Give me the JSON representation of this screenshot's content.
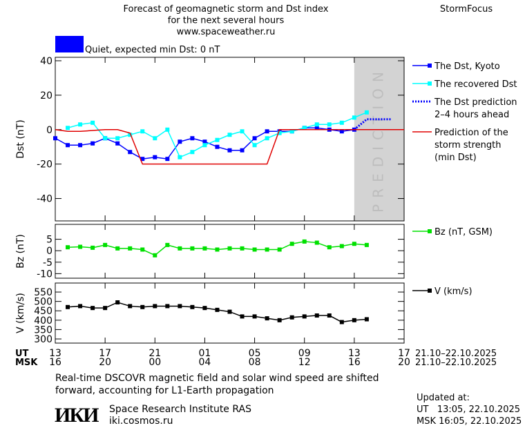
{
  "header": {
    "title_lines": [
      "Forecast of geomagnetic storm and Dst index",
      "for the next several hours",
      "www.spaceweather.ru"
    ],
    "brand": "StormFocus"
  },
  "status": {
    "label": "Quiet, expected min Dst: 0 nT",
    "color": "#0000ff"
  },
  "chart_data": [
    {
      "type": "line",
      "y_label": "Dst (nT)",
      "xlim": [
        0,
        28
      ],
      "xticks": [
        0,
        4,
        8,
        12,
        16,
        20,
        24,
        28
      ],
      "ylim": [
        -53,
        42
      ],
      "yticks": [
        -40,
        -20,
        0,
        20,
        40
      ],
      "prediction_band": {
        "from": 24,
        "to": 28,
        "label": "PREDICTION",
        "color": "#d3d3d3"
      },
      "series": [
        {
          "name": [
            "The Dst, Kyoto"
          ],
          "color": "#0000ff",
          "marker": "square",
          "dash": false,
          "x": [
            0,
            1,
            2,
            3,
            4,
            5,
            6,
            7,
            8,
            9,
            10,
            11,
            12,
            13,
            14,
            15,
            16,
            17,
            18,
            19,
            20,
            21,
            22,
            23,
            24
          ],
          "values": [
            -5,
            -9,
            -9,
            -8,
            -5,
            -8,
            -13,
            -17,
            -16,
            -17,
            -7,
            -5,
            -7,
            -10,
            -12,
            -12,
            -5,
            -1,
            -1,
            -1,
            1,
            1,
            0,
            -1,
            0
          ]
        },
        {
          "name": [
            "The recovered Dst"
          ],
          "color": "#00ffff",
          "marker": "square",
          "dash": false,
          "x": [
            1,
            2,
            3,
            4,
            5,
            6,
            7,
            8,
            9,
            10,
            11,
            12,
            13,
            14,
            15,
            16,
            17,
            18,
            19,
            20,
            21,
            22,
            23,
            24,
            25
          ],
          "values": [
            1,
            3,
            4,
            -5,
            -5,
            -3,
            -1,
            -5,
            0,
            -16,
            -13,
            -9,
            -6,
            -3,
            -1,
            -9,
            -5,
            -2,
            -1,
            1,
            3,
            3,
            4,
            7,
            10
          ]
        },
        {
          "name": [
            "The Dst prediction",
            "2–4 hours ahead"
          ],
          "color": "#0000ff",
          "marker": "none",
          "dash": true,
          "x": [
            24,
            25,
            27
          ],
          "values": [
            0,
            6,
            6
          ]
        },
        {
          "name": [
            "Prediction of the",
            "storm strength",
            "(min Dst)"
          ],
          "color": "#e00000",
          "marker": "none",
          "dash": false,
          "x": [
            0,
            1,
            2,
            3,
            4,
            5,
            6,
            7,
            17,
            18,
            28
          ],
          "values": [
            0,
            -1,
            -1,
            -0.5,
            0,
            0,
            -2,
            -20,
            -20,
            0,
            0
          ]
        }
      ]
    },
    {
      "type": "line",
      "y_label": "Bz (nT)",
      "xlim": [
        0,
        28
      ],
      "xticks": [
        0,
        4,
        8,
        12,
        16,
        20,
        24,
        28
      ],
      "ylim": [
        -12,
        11.5
      ],
      "yticks": [
        -10,
        -5,
        0,
        5
      ],
      "series": [
        {
          "name": [
            "Bz (nT, GSM)"
          ],
          "color": "#00e000",
          "marker": "square",
          "dash": false,
          "x": [
            1,
            2,
            3,
            4,
            5,
            6,
            7,
            8,
            9,
            10,
            11,
            12,
            13,
            14,
            15,
            16,
            17,
            18,
            19,
            20,
            21,
            22,
            23,
            24,
            25
          ],
          "values": [
            1.5,
            1.7,
            1.3,
            2.5,
            1,
            1,
            0.5,
            -2,
            2.5,
            1,
            1,
            1,
            0.5,
            1,
            1,
            0.5,
            0.5,
            0.5,
            3,
            4,
            3.5,
            1.5,
            2,
            3,
            2.5
          ]
        }
      ]
    },
    {
      "type": "line",
      "y_label": "V (km/s)",
      "xlim": [
        0,
        28
      ],
      "xticks": [
        0,
        4,
        8,
        12,
        16,
        20,
        24,
        28
      ],
      "ylim": [
        278,
        598
      ],
      "yticks": [
        300,
        350,
        400,
        450,
        500,
        550
      ],
      "series": [
        {
          "name": [
            "V (km/s)"
          ],
          "color": "#000000",
          "marker": "square",
          "dash": false,
          "x": [
            1,
            2,
            3,
            4,
            5,
            6,
            7,
            8,
            9,
            10,
            11,
            12,
            13,
            14,
            15,
            16,
            17,
            18,
            19,
            20,
            21,
            22,
            23,
            24,
            25
          ],
          "values": [
            470,
            475,
            465,
            465,
            495,
            475,
            470,
            475,
            475,
            475,
            470,
            465,
            455,
            445,
            420,
            420,
            410,
            400,
            415,
            420,
            425,
            425,
            390,
            400,
            405
          ]
        }
      ]
    }
  ],
  "time_scale": {
    "rows": [
      {
        "name": "UT",
        "labels": [
          "13",
          "17",
          "21",
          "01",
          "05",
          "09",
          "13",
          "17"
        ],
        "dates": "21.10–22.10.2025"
      },
      {
        "name": "MSK",
        "labels": [
          "16",
          "20",
          "00",
          "04",
          "08",
          "12",
          "16",
          "20"
        ],
        "dates": "21.10–22.10.2025"
      }
    ]
  },
  "note_lines": [
    "Real-time DSCOVR magnetic field and solar wind speed are shifted",
    "forward, accounting for L1-Earth propagation"
  ],
  "institute": {
    "logo": "ИКИ",
    "name": "Space Research Institute RAS",
    "url": "iki.cosmos.ru"
  },
  "updated": {
    "title": "Updated at:",
    "lines": [
      "UT   13:05, 22.10.2025",
      "MSK 16:05, 22.10.2025"
    ]
  }
}
